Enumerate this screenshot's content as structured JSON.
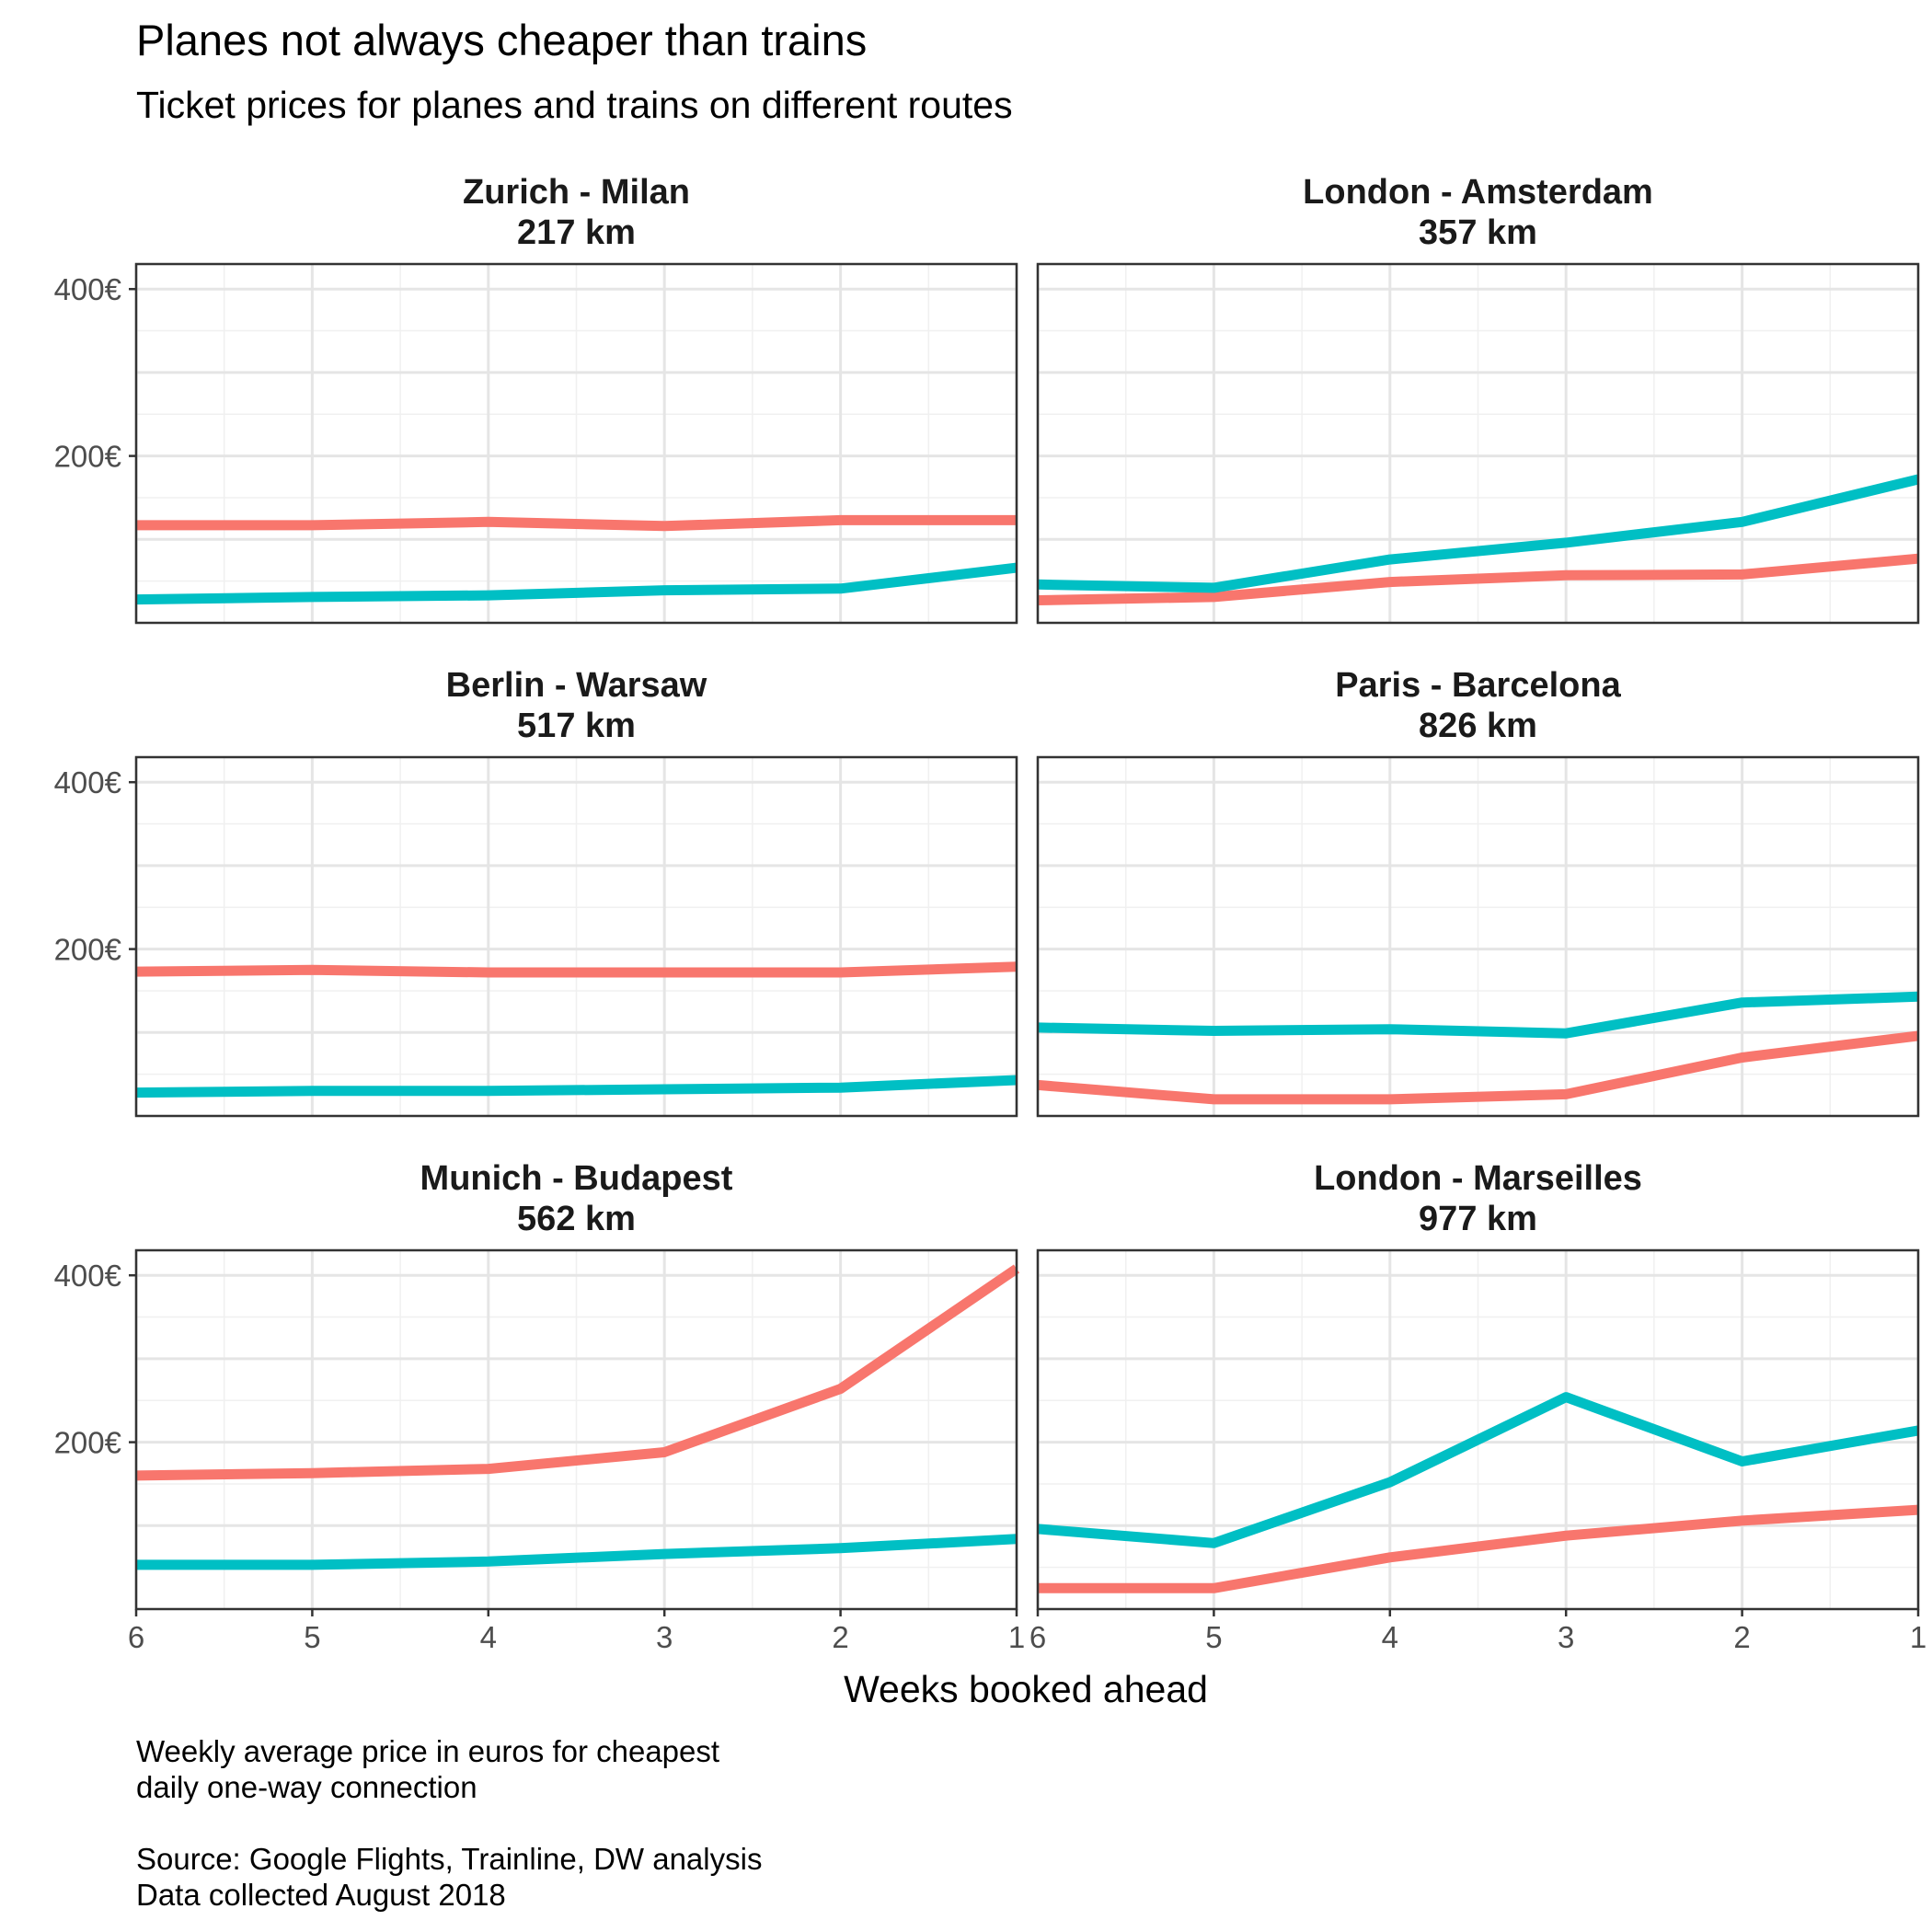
{
  "chart_data": {
    "type": "line",
    "title": "Planes not always cheaper than trains",
    "subtitle": "Ticket prices for planes and trains on different routes",
    "xlabel": "Weeks booked ahead",
    "ylabel": "",
    "x_ticks": [
      6,
      5,
      4,
      3,
      2,
      1
    ],
    "xlim": [
      6,
      1
    ],
    "ylim": [
      0,
      430
    ],
    "y_ticks": [
      200,
      400
    ],
    "y_tick_labels": [
      "200€",
      "400€"
    ],
    "grid": true,
    "legend": "none",
    "colors": {
      "series_red": "#F8766D",
      "series_teal": "#00BFC4"
    },
    "caption": [
      "Weekly average price in euros for cheapest",
      "daily one-way connection",
      "",
      "Source: Google Flights, Trainline, DW analysis",
      "Data collected August 2018"
    ],
    "panels": [
      {
        "route": "Zurich - Milan",
        "distance": "217 km",
        "x": [
          6,
          5,
          4,
          3,
          2,
          1
        ],
        "red": [
          117,
          117,
          121,
          116,
          123,
          123
        ],
        "teal": [
          28,
          31,
          33,
          39,
          41,
          66
        ]
      },
      {
        "route": "London - Amsterdam",
        "distance": "357 km",
        "x": [
          6,
          5,
          4,
          3,
          2,
          1
        ],
        "red": [
          27,
          31,
          49,
          57,
          58,
          77
        ],
        "teal": [
          46,
          42,
          76,
          96,
          121,
          172
        ]
      },
      {
        "route": "Berlin - Warsaw",
        "distance": "517 km",
        "x": [
          6,
          5,
          4,
          3,
          2,
          1
        ],
        "red": [
          173,
          175,
          172,
          172,
          172,
          179
        ],
        "teal": [
          28,
          30,
          30,
          32,
          34,
          43
        ]
      },
      {
        "route": "Paris - Barcelona",
        "distance": "826 km",
        "x": [
          6,
          5,
          4,
          3,
          2,
          1
        ],
        "red": [
          37,
          20,
          20,
          26,
          70,
          96
        ],
        "teal": [
          106,
          102,
          104,
          99,
          136,
          143
        ]
      },
      {
        "route": "Munich - Budapest",
        "distance": "562 km",
        "x": [
          6,
          5,
          4,
          3,
          2,
          1
        ],
        "red": [
          160,
          163,
          168,
          188,
          264,
          408
        ],
        "teal": [
          53,
          53,
          57,
          66,
          73,
          84
        ]
      },
      {
        "route": "London - Marseilles",
        "distance": "977 km",
        "x": [
          6,
          5,
          4,
          3,
          2,
          1
        ],
        "red": [
          25,
          25,
          62,
          88,
          106,
          119
        ],
        "teal": [
          96,
          79,
          152,
          254,
          177,
          214
        ]
      }
    ]
  }
}
